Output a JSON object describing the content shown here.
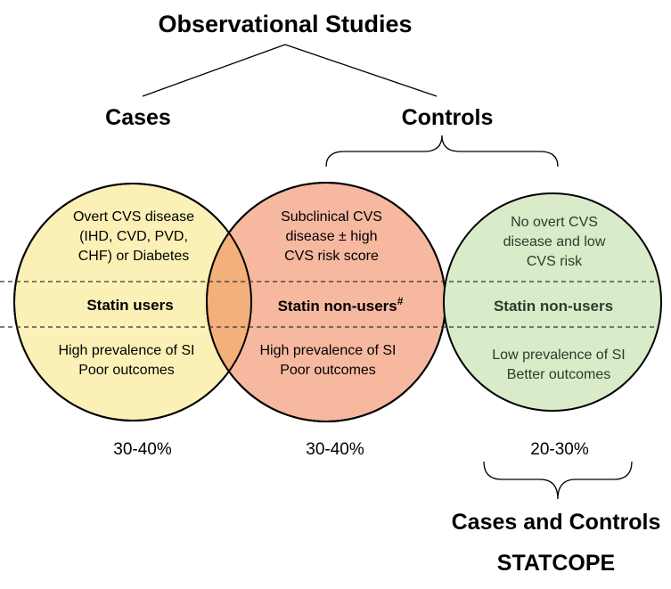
{
  "title": "Observational Studies",
  "cases_label": "Cases",
  "controls_label": "Controls",
  "circles": [
    {
      "top": [
        "Overt CVS disease",
        "(IHD, CVD, PVD,",
        "CHF) or Diabetes"
      ],
      "middle": "Statin users",
      "bottom": [
        "High prevalence of SI",
        "Poor outcomes"
      ],
      "percent": "30-40%",
      "color": "#fbf1b6"
    },
    {
      "top": [
        "Subclinical CVS",
        "disease ± high",
        "CVS risk score"
      ],
      "middle": "Statin non-users",
      "middle_sup": "#",
      "bottom": [
        "High prevalence of SI",
        "Poor outcomes"
      ],
      "percent": "30-40%",
      "color": "#f7b8a0"
    },
    {
      "top": [
        "No overt CVS",
        "disease and low",
        "CVS risk"
      ],
      "middle": "Statin non-users",
      "bottom": [
        "Low prevalence of SI",
        "Better outcomes"
      ],
      "percent": "20-30%",
      "color": "#d9ebc9"
    }
  ],
  "overlap_color": "#f3b07a",
  "bottom_label": "Cases and Controls",
  "study_name": "STATCOPE"
}
